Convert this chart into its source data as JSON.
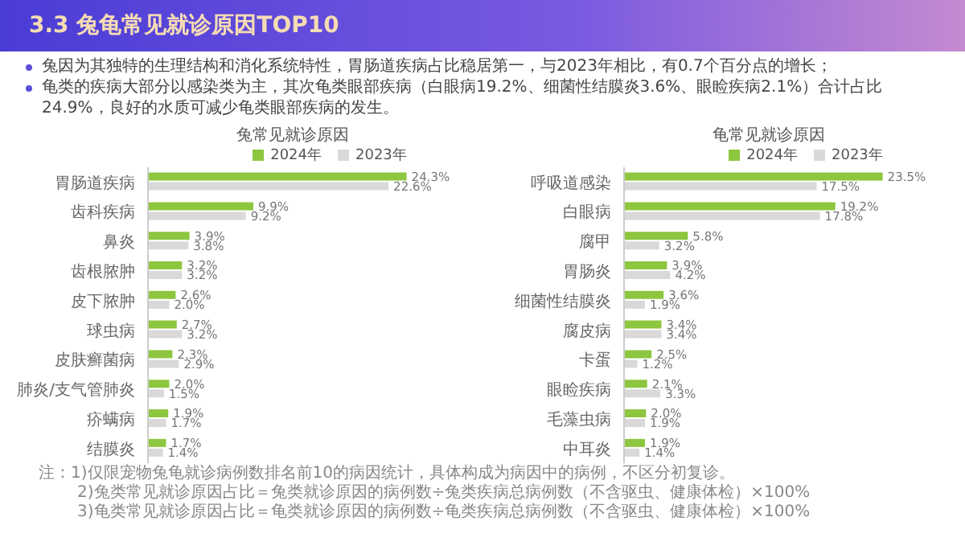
{
  "chart_data": [
    {
      "type": "bar",
      "orientation": "horizontal",
      "title": "兔常见就诊原因",
      "legend": "top",
      "annotations": [
        "3.3  兔龟常见就诊原因TOP10",
        "兔因为其独特的生理结构和消化系统特性，胃肠道疾病占比稳居第一，与2023年相比，有0.7个百分点的增长；",
        "龟类的疾病大部分以感染类为主，其次龟类眼部疾病（白眼病19.2%、细菌性结膜炎3.6%、眼睑疾病2.1%）合计占比24.9%，良好的水质可减少龟类眼部疾病的发生。",
        "注：1)仅限宠物兔龟就诊病例数排名前10的病因统计，具体构成为病因中的病例，不区分初复诊。",
        "2)兔类常见就诊原因占比＝兔类就诊原因的病例数÷兔类疾病总病例数（不含驱虫、健康体检）×100%",
        "3)龟类常见就诊原因占比＝龟类就诊原因的病例数÷龟类疾病总病例数（不含驱虫、健康体检）×100%"
      ],
      "categories": [
        "胃肠道疾病",
        "齿科疾病",
        "鼻炎",
        "齿根脓肿",
        "皮下脓肿",
        "球虫病",
        "皮肤癣菌病",
        "肺炎/支气管肺炎",
        "疥螨病",
        "结膜炎"
      ],
      "series": [
        {
          "name": "2024年",
          "color": "#8dc63f",
          "values": [
            24.3,
            9.9,
            3.9,
            3.2,
            2.6,
            2.7,
            2.3,
            2.0,
            1.9,
            1.7
          ],
          "value_labels": [
            "24.3%",
            "9.9%",
            "3.9%",
            "3.2%",
            "2.6%",
            "2.7%",
            "2.3%",
            "2.0%",
            "1.9%",
            "1.7%"
          ]
        },
        {
          "name": "2023年",
          "color": "#d9d9d9",
          "values": [
            22.6,
            9.2,
            3.8,
            3.2,
            2.0,
            3.2,
            2.9,
            1.5,
            1.7,
            1.4
          ],
          "value_labels": [
            "22.6%",
            "9.2%",
            "3.8%",
            "3.2%",
            "2.0%",
            "3.2%",
            "2.9%",
            "1.5%",
            "1.7%",
            "1.4%"
          ]
        }
      ]
    },
    {
      "type": "bar",
      "orientation": "horizontal",
      "title": "龟常见就诊原因",
      "legend": "top",
      "categories": [
        "呼吸道感染",
        "白眼病",
        "腐甲",
        "胃肠炎",
        "细菌性结膜炎",
        "腐皮病",
        "卡蛋",
        "眼睑疾病",
        "毛藻虫病",
        "中耳炎"
      ],
      "series": [
        {
          "name": "2024年",
          "color": "#8dc63f",
          "values": [
            23.5,
            19.2,
            5.8,
            3.9,
            3.6,
            3.4,
            2.5,
            2.1,
            2.0,
            1.9
          ],
          "value_labels": [
            "23.5%",
            "19.2%",
            "5.8%",
            "3.9%",
            "3.6%",
            "3.4%",
            "2.5%",
            "2.1%",
            "2.0%",
            "1.9%"
          ]
        },
        {
          "name": "2023年",
          "color": "#d9d9d9",
          "values": [
            17.5,
            17.8,
            3.2,
            4.2,
            1.9,
            3.4,
            1.2,
            3.3,
            1.9,
            1.4
          ],
          "value_labels": [
            "17.5%",
            "17.8%",
            "3.2%",
            "4.2%",
            "1.9%",
            "3.4%",
            "1.2%",
            "3.3%",
            "1.9%",
            "1.4%"
          ]
        }
      ]
    }
  ]
}
